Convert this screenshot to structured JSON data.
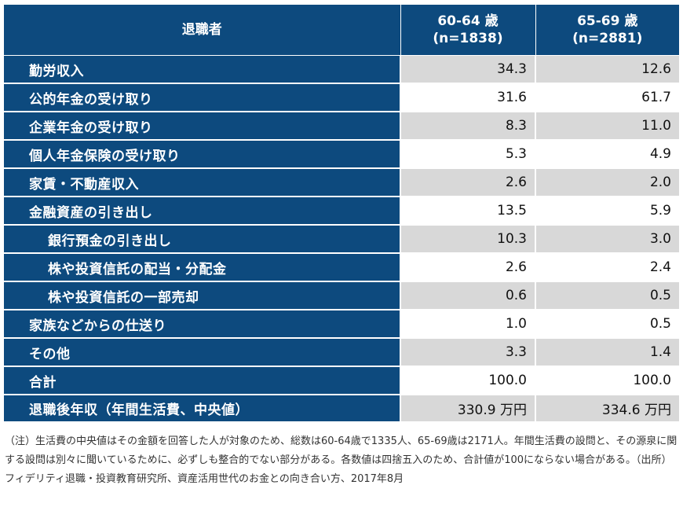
{
  "table": {
    "headers": {
      "label": "退職者",
      "col1_line1": "60-64 歳",
      "col1_line2": "(n=1838)",
      "col2_line1": "65-69 歳",
      "col2_line2": "(n=2881)"
    },
    "rows": [
      {
        "label": "勤労収入",
        "v1": "34.3",
        "v2": "12.6"
      },
      {
        "label": "公的年金の受け取り",
        "v1": "31.6",
        "v2": "61.7"
      },
      {
        "label": "企業年金の受け取り",
        "v1": "8.3",
        "v2": "11.0"
      },
      {
        "label": "個人年金保険の受け取り",
        "v1": "5.3",
        "v2": "4.9"
      },
      {
        "label": "家賃・不動産収入",
        "v1": "2.6",
        "v2": "2.0"
      },
      {
        "label": "金融資産の引き出し",
        "v1": "13.5",
        "v2": "5.9"
      },
      {
        "label": "銀行預金の引き出し",
        "v1": "10.3",
        "v2": "3.0"
      },
      {
        "label": "株や投資信託の配当・分配金",
        "v1": "2.6",
        "v2": "2.4"
      },
      {
        "label": "株や投資信託の一部売却",
        "v1": "0.6",
        "v2": "0.5"
      },
      {
        "label": "家族などからの仕送り",
        "v1": "1.0",
        "v2": "0.5"
      },
      {
        "label": "その他",
        "v1": "3.3",
        "v2": "1.4"
      },
      {
        "label": "合計",
        "v1": "100.0",
        "v2": "100.0"
      },
      {
        "label": "退職後年収（年間生活費、中央値）",
        "v1": "330.9 万円",
        "v2": "334.6 万円"
      }
    ]
  },
  "note": "（注）生活費の中央値はその金額を回答した人が対象のため、総数は60-64歳で1335人、65-69歳は2171人。年間生活費の設問と、その源泉に関する設問は別々に聞いているために、必ずしも整合的でない部分がある。各数値は四捨五入のため、合計値が100にならない場合がある。（出所）フィデリティ退職・投資教育研究所、資産活用世代のお金との向き合い方、2017年8月",
  "colors": {
    "header_bg": "#0d4a7e",
    "stripe": "#d8d8d8"
  }
}
